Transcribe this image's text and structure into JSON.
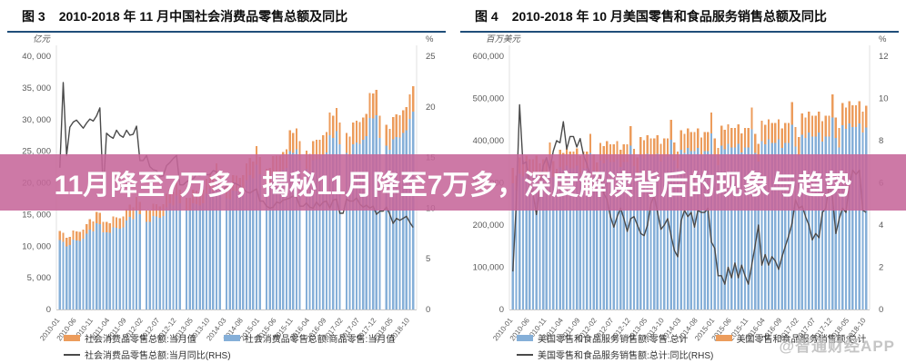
{
  "banner": {
    "text": "11月降至7万多，揭秘11月降至7万多，深度解读背后的现象与趋势",
    "bg_color": "#C6679A",
    "text_color": "#ffffff"
  },
  "watermark": {
    "text": "@智通财经APP"
  },
  "colors": {
    "bar_blue": "#85AFD8",
    "bar_orange": "#EC9C5C",
    "line_gray": "#4A4A4A",
    "title_rule": "#1F4E79",
    "axis_text": "#595959"
  },
  "chart_data": [
    {
      "type": "bar+line",
      "figure_label": "图 3",
      "title": "2010-2018 年 11 月中国社会消费品零售总额及同比",
      "x_start": "2010-01",
      "x_end": "2018-11",
      "x_tick_every": 5,
      "x_ticks": [
        "2010-01",
        "2010-06",
        "2010-11",
        "2011-04",
        "2011-09",
        "2012-02",
        "2012-07",
        "2012-12",
        "2013-05",
        "2013-10",
        "2014-03",
        "2014-08",
        "2015-01",
        "2015-06",
        "2015-11",
        "2016-04",
        "2016-09",
        "2017-02",
        "2017-07",
        "2017-12",
        "2018-05",
        "2018-10"
      ],
      "left_axis": {
        "unit": "亿元",
        "max": 40000,
        "ticks": [
          "40, 000",
          "35, 000",
          "30, 000",
          "25, 000",
          "20, 000",
          "15, 000",
          "10, 000",
          "5, 000",
          "0"
        ]
      },
      "right_axis": {
        "unit": "%",
        "max": 25,
        "ticks": [
          "25",
          "20",
          "15",
          "10",
          "5",
          "0"
        ]
      },
      "legend": [
        {
          "swatch": "bar",
          "color": "#EC9C5C",
          "label": "社会消费品零售总额:当月值"
        },
        {
          "swatch": "bar",
          "color": "#85AFD8",
          "label": "社会消费品零售总额:商品零售:当月值"
        },
        {
          "swatch": "line",
          "color": "#4A4A4A",
          "label": "社会消费品零售总额:当月同比(RHS)"
        }
      ],
      "series": [
        {
          "name": "社会消费品零售总额:当月值",
          "type": "bar",
          "axis": "left",
          "color": "#EC9C5C",
          "values": [
            12400,
            12100,
            11300,
            11500,
            12500,
            12300,
            12250,
            12600,
            13500,
            14300,
            13900,
            15400,
            15250,
            13800,
            13800,
            13650,
            14700,
            14550,
            14400,
            14700,
            15850,
            16550,
            16150,
            17750,
            17000,
            null,
            15650,
            15600,
            16700,
            16600,
            16300,
            16650,
            18250,
            18950,
            18500,
            20350,
            18900,
            null,
            17650,
            17600,
            18900,
            18800,
            18500,
            18900,
            20650,
            21500,
            21000,
            23050,
            21350,
            null,
            19800,
            19700,
            21250,
            21150,
            20800,
            21250,
            23050,
            23950,
            23400,
            25800,
            24100,
            null,
            22200,
            22400,
            24200,
            24300,
            24300,
            24900,
            25300,
            28300,
            27900,
            28600,
            26600,
            null,
            25100,
            24600,
            26600,
            26800,
            26800,
            27500,
            28000,
            31100,
            30600,
            31800,
            29500,
            null,
            27900,
            27300,
            29500,
            29800,
            29600,
            30300,
            30900,
            34200,
            34100,
            34700,
            30600,
            null,
            29200,
            28500,
            30400,
            30800,
            30700,
            31500,
            32000,
            34000,
            35300
          ]
        },
        {
          "name": "社会消费品零售总额:商品零售:当月值",
          "type": "bar",
          "axis": "left",
          "color": "#85AFD8",
          "values": [
            10950,
            10700,
            10000,
            10200,
            11050,
            10900,
            10850,
            11150,
            11950,
            12650,
            12300,
            13650,
            13500,
            12200,
            12200,
            12100,
            13000,
            12900,
            12750,
            13000,
            14050,
            14650,
            14300,
            15700,
            15050,
            null,
            13850,
            13800,
            14800,
            14700,
            14450,
            14750,
            16150,
            16800,
            16400,
            18000,
            16750,
            null,
            15600,
            15600,
            16750,
            16650,
            16400,
            16750,
            18300,
            19050,
            18600,
            20400,
            18900,
            null,
            17550,
            17450,
            18800,
            18700,
            18400,
            18800,
            20400,
            21200,
            20700,
            22850,
            21350,
            null,
            19650,
            19850,
            21400,
            21500,
            21500,
            22050,
            22400,
            25050,
            24700,
            25300,
            23550,
            null,
            22200,
            21800,
            23550,
            23700,
            23700,
            24350,
            24800,
            27550,
            27100,
            28150,
            26100,
            null,
            24700,
            24150,
            26100,
            26400,
            26200,
            26800,
            27350,
            30250,
            30200,
            30700,
            27100,
            null,
            25850,
            25200,
            26900,
            27250,
            27150,
            27900,
            28300,
            30100,
            31250
          ]
        },
        {
          "name": "社会消费品零售总额:当月同比(RHS)",
          "type": "line",
          "axis": "right",
          "color": "#4A4A4A",
          "values": [
            14.0,
            22.4,
            15.2,
            18.0,
            18.5,
            18.7,
            18.3,
            17.9,
            18.4,
            18.8,
            18.6,
            19.1,
            19.9,
            11.6,
            17.4,
            17.1,
            16.9,
            17.7,
            17.2,
            17.0,
            17.7,
            17.2,
            17.3,
            18.1,
            14.7,
            14.7,
            15.2,
            14.1,
            13.8,
            13.7,
            13.1,
            13.2,
            14.2,
            14.5,
            14.9,
            15.2,
            12.3,
            12.3,
            12.6,
            12.8,
            12.9,
            13.3,
            13.2,
            13.4,
            13.3,
            13.3,
            13.7,
            13.6,
            11.8,
            11.8,
            12.2,
            11.9,
            12.5,
            12.4,
            12.2,
            11.9,
            11.6,
            11.5,
            11.7,
            11.9,
            10.7,
            10.7,
            10.2,
            10.0,
            10.1,
            10.6,
            10.5,
            10.8,
            10.9,
            11.0,
            11.2,
            11.1,
            10.2,
            10.2,
            10.5,
            10.1,
            10.0,
            10.6,
            10.2,
            10.6,
            10.7,
            10.0,
            10.8,
            10.9,
            9.5,
            9.5,
            10.9,
            10.7,
            10.7,
            11.0,
            10.4,
            10.1,
            10.3,
            10.0,
            10.2,
            9.4,
            9.7,
            9.7,
            10.1,
            9.4,
            8.5,
            9.0,
            8.8,
            9.0,
            9.2,
            8.6,
            8.1
          ]
        }
      ]
    },
    {
      "type": "bar+line",
      "figure_label": "图 4",
      "title": "2010-2018 年 10 月美国零售和食品服务销售总额及同比",
      "x_start": "2010-01",
      "x_end": "2018-10",
      "x_tick_every": 5,
      "x_ticks": [
        "2010-01",
        "2010-06",
        "2010-11",
        "2011-04",
        "2011-09",
        "2012-02",
        "2012-07",
        "2012-12",
        "2013-05",
        "2013-10",
        "2014-03",
        "2014-08",
        "2015-01",
        "2015-06",
        "2015-11",
        "2016-04",
        "2016-09",
        "2017-02",
        "2017-07",
        "2017-12",
        "2018-05",
        "2018-10"
      ],
      "left_axis": {
        "unit": "百万美元",
        "max": 600000,
        "ticks": [
          "600,000",
          "500,000",
          "400,000",
          "300,000",
          "200,000",
          "100,000",
          "0"
        ]
      },
      "right_axis": {
        "unit": "%",
        "max": 12,
        "ticks": [
          "12",
          "10",
          "8",
          "6",
          "4",
          "2",
          "0"
        ]
      },
      "legend": [
        {
          "swatch": "bar",
          "color": "#85AFD8",
          "label": "美国零售和食品服务销售额:零售:总计"
        },
        {
          "swatch": "bar",
          "color": "#EC9C5C",
          "label": "美国零售和食品服务销售额:总计"
        },
        {
          "swatch": "line",
          "color": "#4A4A4A",
          "label": "美国零售和食品服务销售额:总计:同比(RHS)"
        }
      ],
      "series": [
        {
          "name": "美国零售和食品服务销售额:总计",
          "type": "bar",
          "axis": "left",
          "color": "#EC9C5C",
          "values": [
            335000,
            317000,
            360000,
            353000,
            364000,
            356000,
            356000,
            364000,
            346000,
            356000,
            356000,
            396000,
            352000,
            333000,
            378000,
            371000,
            382000,
            374000,
            374000,
            382000,
            363000,
            374000,
            374000,
            416000,
            368000,
            348000,
            395000,
            387000,
            399000,
            391000,
            391000,
            399000,
            379000,
            391000,
            391000,
            434000,
            381000,
            360000,
            409000,
            401000,
            413000,
            405000,
            405000,
            413000,
            393000,
            405000,
            405000,
            450000,
            396000,
            374000,
            425000,
            416000,
            429000,
            420000,
            420000,
            429000,
            408000,
            420000,
            420000,
            467000,
            405000,
            383000,
            435000,
            426000,
            439000,
            430000,
            430000,
            439000,
            417000,
            430000,
            430000,
            478000,
            416000,
            393000,
            447000,
            438000,
            451000,
            442000,
            442000,
            451000,
            429000,
            442000,
            442000,
            491000,
            432000,
            409000,
            464000,
            455000,
            469000,
            459000,
            459000,
            469000,
            446000,
            459000,
            459000,
            510000,
            455000,
            430000,
            489000,
            479000,
            494000,
            484000,
            484000,
            494000,
            469000,
            483000
          ]
        },
        {
          "name": "美国零售和食品服务销售额:零售:总计",
          "type": "bar",
          "axis": "left",
          "color": "#85AFD8",
          "values": [
            299000,
            283000,
            321000,
            315000,
            325000,
            318000,
            318000,
            325000,
            309000,
            318000,
            318000,
            354000,
            314000,
            297000,
            337000,
            331000,
            341000,
            334000,
            334000,
            341000,
            324000,
            334000,
            334000,
            371000,
            329000,
            311000,
            353000,
            346000,
            356000,
            349000,
            349000,
            356000,
            338000,
            349000,
            349000,
            388000,
            340000,
            321000,
            365000,
            358000,
            369000,
            362000,
            362000,
            369000,
            351000,
            362000,
            362000,
            402000,
            354000,
            334000,
            379000,
            371000,
            383000,
            375000,
            375000,
            383000,
            364000,
            375000,
            375000,
            417000,
            362000,
            342000,
            388000,
            380000,
            392000,
            384000,
            384000,
            392000,
            372000,
            384000,
            384000,
            427000,
            371000,
            351000,
            399000,
            391000,
            403000,
            395000,
            395000,
            403000,
            383000,
            395000,
            395000,
            438000,
            386000,
            365000,
            414000,
            406000,
            419000,
            410000,
            410000,
            419000,
            398000,
            410000,
            410000,
            455000,
            406000,
            384000,
            437000,
            428000,
            441000,
            432000,
            432000,
            441000,
            419000,
            431000
          ]
        },
        {
          "name": "美国零售和食品服务销售额:总计:同比(RHS)",
          "type": "line",
          "axis": "right",
          "color": "#4A4A4A",
          "values": [
            1.8,
            5.0,
            9.7,
            6.9,
            7.0,
            5.8,
            5.5,
            4.5,
            5.8,
            6.8,
            7.2,
            6.6,
            7.5,
            8.0,
            7.9,
            8.9,
            7.6,
            8.2,
            8.2,
            7.7,
            8.1,
            7.3,
            6.9,
            6.3,
            5.9,
            6.5,
            6.3,
            5.5,
            5.2,
            4.4,
            3.9,
            4.4,
            4.8,
            4.3,
            3.7,
            4.3,
            4.4,
            4.0,
            3.6,
            3.5,
            4.0,
            5.0,
            5.4,
            4.6,
            3.8,
            4.0,
            4.3,
            3.5,
            2.8,
            2.5,
            4.2,
            4.7,
            4.4,
            4.6,
            3.9,
            4.7,
            4.6,
            4.6,
            4.8,
            3.2,
            2.9,
            1.6,
            1.6,
            1.2,
            2.0,
            1.5,
            2.2,
            1.5,
            2.1,
            1.6,
            1.2,
            2.1,
            3.0,
            4.0,
            2.1,
            2.6,
            2.1,
            2.5,
            2.3,
            1.9,
            2.5,
            3.0,
            3.5,
            4.1,
            5.2,
            4.8,
            4.9,
            4.4,
            4.0,
            3.3,
            3.6,
            3.4,
            4.6,
            4.8,
            5.9,
            5.3,
            3.6,
            4.3,
            4.8,
            4.6,
            5.9,
            6.6,
            6.4,
            6.6,
            4.7,
            4.6
          ]
        }
      ]
    }
  ]
}
